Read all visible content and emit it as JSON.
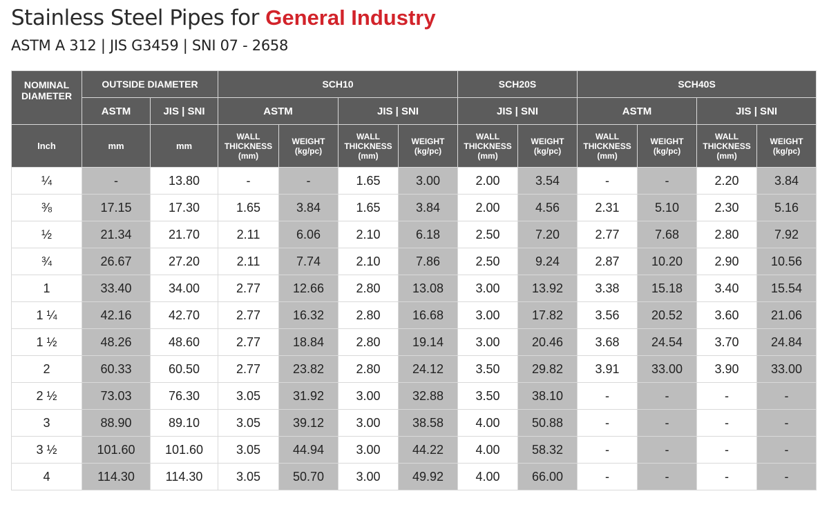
{
  "title": {
    "prefix": "Stainless Steel Pipes for ",
    "highlight": "General Industry"
  },
  "subtitle": "ASTM A 312 | JIS G3459 | SNI 07 - 2658",
  "header": {
    "nominal_diameter": "NOMINAL DIAMETER",
    "outside_diameter": "OUTSIDE DIAMETER",
    "sch10": "SCH10",
    "sch20s": "SCH20S",
    "sch40s": "SCH40S",
    "astm": "ASTM",
    "jis_sni": "JIS | SNI",
    "inch": "Inch",
    "mm": "mm",
    "wall_thickness": [
      "WALL",
      "THICKNESS",
      "(mm)"
    ],
    "weight": [
      "WEIGHT",
      "(kg/pc)"
    ]
  },
  "rows": [
    [
      "¼",
      "-",
      "13.80",
      "-",
      "-",
      "1.65",
      "3.00",
      "2.00",
      "3.54",
      "-",
      "-",
      "2.20",
      "3.84"
    ],
    [
      "⅜",
      "17.15",
      "17.30",
      "1.65",
      "3.84",
      "1.65",
      "3.84",
      "2.00",
      "4.56",
      "2.31",
      "5.10",
      "2.30",
      "5.16"
    ],
    [
      "½",
      "21.34",
      "21.70",
      "2.11",
      "6.06",
      "2.10",
      "6.18",
      "2.50",
      "7.20",
      "2.77",
      "7.68",
      "2.80",
      "7.92"
    ],
    [
      "¾",
      "26.67",
      "27.20",
      "2.11",
      "7.74",
      "2.10",
      "7.86",
      "2.50",
      "9.24",
      "2.87",
      "10.20",
      "2.90",
      "10.56"
    ],
    [
      "1",
      "33.40",
      "34.00",
      "2.77",
      "12.66",
      "2.80",
      "13.08",
      "3.00",
      "13.92",
      "3.38",
      "15.18",
      "3.40",
      "15.54"
    ],
    [
      "1 ¼",
      "42.16",
      "42.70",
      "2.77",
      "16.32",
      "2.80",
      "16.68",
      "3.00",
      "17.82",
      "3.56",
      "20.52",
      "3.60",
      "21.06"
    ],
    [
      "1 ½",
      "48.26",
      "48.60",
      "2.77",
      "18.84",
      "2.80",
      "19.14",
      "3.00",
      "20.46",
      "3.68",
      "24.54",
      "3.70",
      "24.84"
    ],
    [
      "2",
      "60.33",
      "60.50",
      "2.77",
      "23.82",
      "2.80",
      "24.12",
      "3.50",
      "29.82",
      "3.91",
      "33.00",
      "3.90",
      "33.00"
    ],
    [
      "2 ½",
      "73.03",
      "76.30",
      "3.05",
      "31.92",
      "3.00",
      "32.88",
      "3.50",
      "38.10",
      "-",
      "-",
      "-",
      "-"
    ],
    [
      "3",
      "88.90",
      "89.10",
      "3.05",
      "39.12",
      "3.00",
      "38.58",
      "4.00",
      "50.88",
      "-",
      "-",
      "-",
      "-"
    ],
    [
      "3 ½",
      "101.60",
      "101.60",
      "3.05",
      "44.94",
      "3.00",
      "44.22",
      "4.00",
      "58.32",
      "-",
      "-",
      "-",
      "-"
    ],
    [
      "4",
      "114.30",
      "114.30",
      "3.05",
      "50.70",
      "3.00",
      "49.92",
      "4.00",
      "66.00",
      "-",
      "-",
      "-",
      "-"
    ]
  ]
}
